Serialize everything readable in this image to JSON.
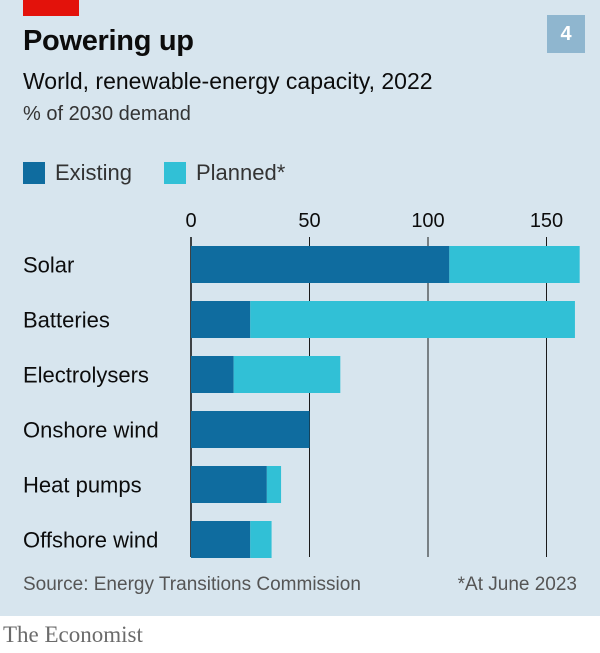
{
  "header": {
    "chart_number": "4",
    "title": "Powering up",
    "subtitle": "World, renewable-energy capacity, 2022",
    "units": "% of 2030 demand"
  },
  "legend": {
    "existing_label": "Existing",
    "planned_label": "Planned*"
  },
  "footer": {
    "source": "Source: Energy Transitions Commission",
    "footnote": "*At June 2023",
    "brand": "The Economist"
  },
  "colors": {
    "existing": "#0f6c9f",
    "planned": "#31c0d6",
    "background": "#d7e5ee",
    "accent": "#e3120b"
  },
  "chart_data": {
    "type": "bar",
    "orientation": "horizontal",
    "stacked": true,
    "title": "Powering up",
    "subtitle": "World, renewable-energy capacity, 2022",
    "xlabel": "% of 2030 demand",
    "xlim": [
      0,
      165
    ],
    "xticks": [
      0,
      50,
      100,
      150
    ],
    "categories": [
      "Solar",
      "Batteries",
      "Electrolysers",
      "Onshore wind",
      "Heat pumps",
      "Offshore wind"
    ],
    "series": [
      {
        "name": "Existing",
        "values": [
          109,
          25,
          18,
          50,
          32,
          25
        ]
      },
      {
        "name": "Planned*",
        "values": [
          55,
          137,
          45,
          0,
          6,
          9
        ]
      }
    ],
    "legend": "top-left",
    "grid": "vertical"
  }
}
